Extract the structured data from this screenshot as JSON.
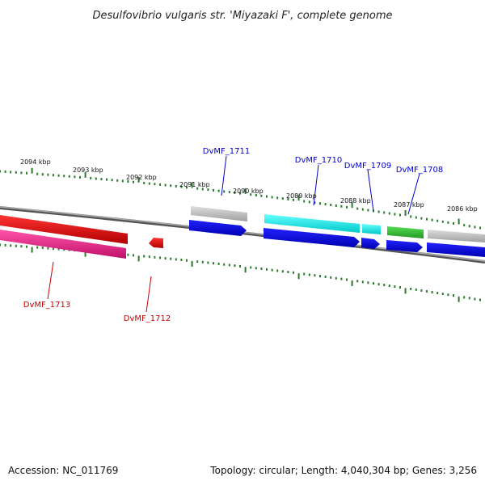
{
  "title": "Desulfovibrio vulgaris str. 'Miyazaki F', complete genome",
  "footer": {
    "accession": "Accession: NC_011769",
    "topology": "Topology: circular; Length: 4,040,304 bp; Genes: 3,256"
  },
  "kbp_labels": [
    "2094 kbp",
    "2093 kbp",
    "2092 kbp",
    "2091 kbp",
    "2090 kbp",
    "2089 kbp",
    "2088 kbp",
    "2087 kbp",
    "2086 kbp"
  ],
  "genes": [
    {
      "name": "DvMF_1711",
      "color": "#0000cc"
    },
    {
      "name": "DvMF_1710",
      "color": "#0000cc"
    },
    {
      "name": "DvMF_1709",
      "color": "#0000cc"
    },
    {
      "name": "DvMF_1708",
      "color": "#0000cc"
    },
    {
      "name": "DvMF_1713",
      "color": "#cc0000"
    },
    {
      "name": "DvMF_1712",
      "color": "#cc0000"
    }
  ],
  "colors": {
    "backbone": "#888888",
    "tick": "#2a7a2a",
    "forward_cds": "#0000dd",
    "reverse_cds": "#dd0000",
    "pink": "#e0207a",
    "cyan": "#00e5e5",
    "green": "#33bb33",
    "grey": "#bbbbbb"
  }
}
